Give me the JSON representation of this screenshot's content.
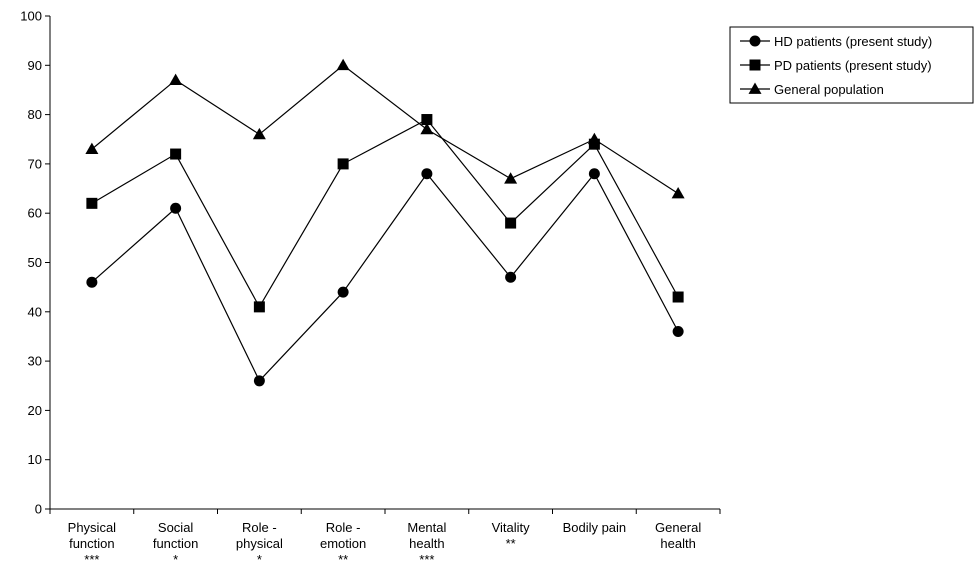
{
  "chart_data": {
    "type": "line",
    "title": "",
    "xlabel": "",
    "ylabel": "",
    "ylim": [
      0,
      100
    ],
    "yticks": [
      0,
      10,
      20,
      30,
      40,
      50,
      60,
      70,
      80,
      90,
      100
    ],
    "grid": false,
    "legend_position": "top-right",
    "categories": [
      [
        "Physical",
        "function",
        "***"
      ],
      [
        "Social",
        "function",
        "*"
      ],
      [
        "Role -",
        "physical",
        "*"
      ],
      [
        "Role -",
        "emotion",
        "**"
      ],
      [
        "Mental",
        "health",
        "***"
      ],
      [
        "Vitality",
        "**"
      ],
      [
        "Bodily pain"
      ],
      [
        "General",
        "health"
      ]
    ],
    "series": [
      {
        "name": "HD patients (present study)",
        "marker": "circle",
        "values": [
          46,
          61,
          26,
          44,
          68,
          47,
          68,
          36
        ]
      },
      {
        "name": "PD patients (present study)",
        "marker": "square",
        "values": [
          62,
          72,
          41,
          70,
          79,
          58,
          74,
          43
        ]
      },
      {
        "name": "General population",
        "marker": "triangle",
        "values": [
          73,
          87,
          76,
          90,
          77,
          67,
          75,
          64
        ]
      }
    ]
  }
}
